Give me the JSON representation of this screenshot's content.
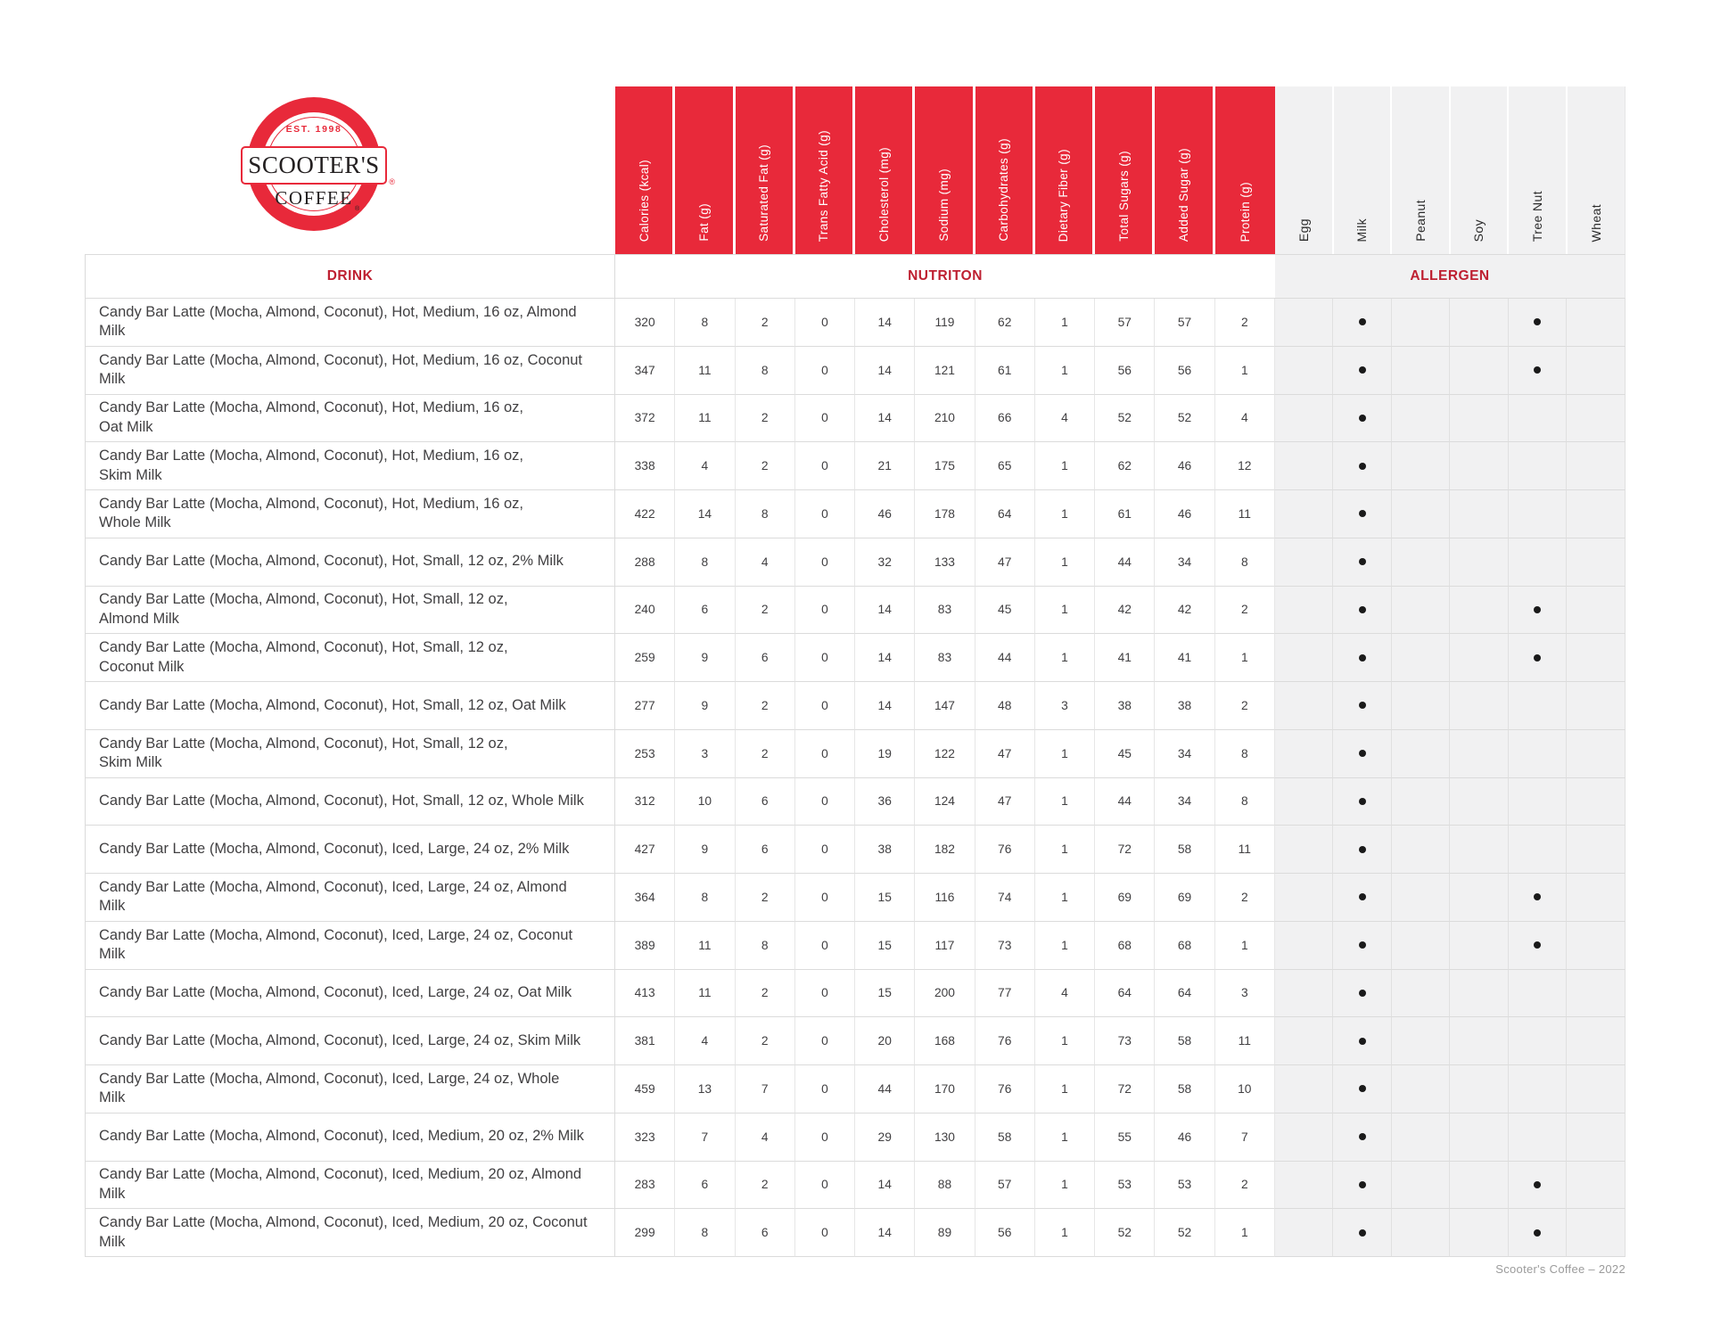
{
  "brand": {
    "est": "EST. 1998",
    "name": "SCOOTER'S",
    "coffee": "COFFEE",
    "registered": "®"
  },
  "colors": {
    "header_red": "#E8293A",
    "section_label_red": "#BE2031",
    "allergen_bg": "#F1F1F2",
    "dot_color": "#1A1A1A",
    "footer_gray": "#9B9B9B"
  },
  "table": {
    "section_headers": {
      "drink": "DRINK",
      "nutrition": "NUTRITON",
      "allergen": "ALLERGEN"
    },
    "nutrition_columns": [
      "Calories (kcal)",
      "Fat (g)",
      "Saturated Fat (g)",
      "Trans Fatty Acid (g)",
      "Cholesterol (mg)",
      "Sodium (mg)",
      "Carbohydrates (g)",
      "Dietary Fiber (g)",
      "Total Sugars (g)",
      "Added Sugar (g)",
      "Protein (g)"
    ],
    "allergen_columns": [
      "Egg",
      "Milk",
      "Peanut",
      "Soy",
      "Tree Nut",
      "Wheat"
    ],
    "rows": [
      {
        "drink": "Candy Bar Latte (Mocha, Almond, Coconut), Hot, Medium, 16 oz, Almond Milk",
        "values": [
          320,
          8,
          2,
          0,
          14,
          119,
          62,
          1,
          57,
          57,
          2
        ],
        "allergens": [
          "Milk",
          "Tree Nut"
        ]
      },
      {
        "drink": "Candy Bar Latte (Mocha, Almond, Coconut), Hot, Medium, 16 oz, Coconut Milk",
        "values": [
          347,
          11,
          8,
          0,
          14,
          121,
          61,
          1,
          56,
          56,
          1
        ],
        "allergens": [
          "Milk",
          "Tree Nut"
        ]
      },
      {
        "drink": "Candy Bar Latte (Mocha, Almond, Coconut), Hot, Medium, 16 oz,\nOat Milk",
        "values": [
          372,
          11,
          2,
          0,
          14,
          210,
          66,
          4,
          52,
          52,
          4
        ],
        "allergens": [
          "Milk"
        ]
      },
      {
        "drink": "Candy Bar Latte (Mocha, Almond, Coconut), Hot, Medium, 16 oz,\nSkim Milk",
        "values": [
          338,
          4,
          2,
          0,
          21,
          175,
          65,
          1,
          62,
          46,
          12
        ],
        "allergens": [
          "Milk"
        ]
      },
      {
        "drink": "Candy Bar Latte (Mocha, Almond, Coconut), Hot, Medium, 16 oz,\nWhole Milk",
        "values": [
          422,
          14,
          8,
          0,
          46,
          178,
          64,
          1,
          61,
          46,
          11
        ],
        "allergens": [
          "Milk"
        ]
      },
      {
        "drink": "Candy Bar Latte (Mocha, Almond, Coconut), Hot, Small, 12 oz, 2% Milk",
        "values": [
          288,
          8,
          4,
          0,
          32,
          133,
          47,
          1,
          44,
          34,
          8
        ],
        "allergens": [
          "Milk"
        ]
      },
      {
        "drink": "Candy Bar Latte (Mocha, Almond, Coconut), Hot, Small, 12 oz,\nAlmond Milk",
        "values": [
          240,
          6,
          2,
          0,
          14,
          83,
          45,
          1,
          42,
          42,
          2
        ],
        "allergens": [
          "Milk",
          "Tree Nut"
        ]
      },
      {
        "drink": "Candy Bar Latte (Mocha, Almond, Coconut), Hot, Small, 12 oz,\nCoconut Milk",
        "values": [
          259,
          9,
          6,
          0,
          14,
          83,
          44,
          1,
          41,
          41,
          1
        ],
        "allergens": [
          "Milk",
          "Tree Nut"
        ]
      },
      {
        "drink": "Candy Bar Latte (Mocha, Almond, Coconut), Hot, Small, 12 oz, Oat Milk",
        "values": [
          277,
          9,
          2,
          0,
          14,
          147,
          48,
          3,
          38,
          38,
          2
        ],
        "allergens": [
          "Milk"
        ]
      },
      {
        "drink": "Candy Bar Latte (Mocha, Almond, Coconut), Hot, Small, 12 oz,\nSkim Milk",
        "values": [
          253,
          3,
          2,
          0,
          19,
          122,
          47,
          1,
          45,
          34,
          8
        ],
        "allergens": [
          "Milk"
        ]
      },
      {
        "drink": "Candy Bar Latte (Mocha, Almond, Coconut), Hot, Small, 12 oz, Whole Milk",
        "values": [
          312,
          10,
          6,
          0,
          36,
          124,
          47,
          1,
          44,
          34,
          8
        ],
        "allergens": [
          "Milk"
        ]
      },
      {
        "drink": "Candy Bar Latte (Mocha, Almond, Coconut), Iced, Large, 24 oz, 2% Milk",
        "values": [
          427,
          9,
          6,
          0,
          38,
          182,
          76,
          1,
          72,
          58,
          11
        ],
        "allergens": [
          "Milk"
        ]
      },
      {
        "drink": "Candy Bar Latte (Mocha, Almond, Coconut), Iced, Large, 24 oz, Almond Milk",
        "values": [
          364,
          8,
          2,
          0,
          15,
          116,
          74,
          1,
          69,
          69,
          2
        ],
        "allergens": [
          "Milk",
          "Tree Nut"
        ]
      },
      {
        "drink": "Candy Bar Latte (Mocha, Almond, Coconut), Iced, Large, 24 oz, Coconut Milk",
        "values": [
          389,
          11,
          8,
          0,
          15,
          117,
          73,
          1,
          68,
          68,
          1
        ],
        "allergens": [
          "Milk",
          "Tree Nut"
        ]
      },
      {
        "drink": "Candy Bar Latte (Mocha, Almond, Coconut), Iced, Large, 24 oz, Oat Milk",
        "values": [
          413,
          11,
          2,
          0,
          15,
          200,
          77,
          4,
          64,
          64,
          3
        ],
        "allergens": [
          "Milk"
        ]
      },
      {
        "drink": "Candy Bar Latte (Mocha, Almond, Coconut), Iced, Large, 24 oz, Skim Milk",
        "values": [
          381,
          4,
          2,
          0,
          20,
          168,
          76,
          1,
          73,
          58,
          11
        ],
        "allergens": [
          "Milk"
        ]
      },
      {
        "drink": "Candy Bar Latte (Mocha, Almond, Coconut), Iced, Large, 24 oz, Whole Milk",
        "values": [
          459,
          13,
          7,
          0,
          44,
          170,
          76,
          1,
          72,
          58,
          10
        ],
        "allergens": [
          "Milk"
        ]
      },
      {
        "drink": "Candy Bar Latte (Mocha, Almond, Coconut), Iced, Medium, 20 oz, 2% Milk",
        "values": [
          323,
          7,
          4,
          0,
          29,
          130,
          58,
          1,
          55,
          46,
          7
        ],
        "allergens": [
          "Milk"
        ]
      },
      {
        "drink": "Candy Bar Latte (Mocha, Almond, Coconut), Iced, Medium, 20 oz, Almond Milk",
        "values": [
          283,
          6,
          2,
          0,
          14,
          88,
          57,
          1,
          53,
          53,
          2
        ],
        "allergens": [
          "Milk",
          "Tree Nut"
        ]
      },
      {
        "drink": "Candy Bar Latte (Mocha, Almond, Coconut), Iced, Medium, 20 oz, Coconut\nMilk",
        "values": [
          299,
          8,
          6,
          0,
          14,
          89,
          56,
          1,
          52,
          52,
          1
        ],
        "allergens": [
          "Milk",
          "Tree Nut"
        ]
      }
    ]
  },
  "footer": {
    "text": "Scooter's Coffee – 2022"
  }
}
